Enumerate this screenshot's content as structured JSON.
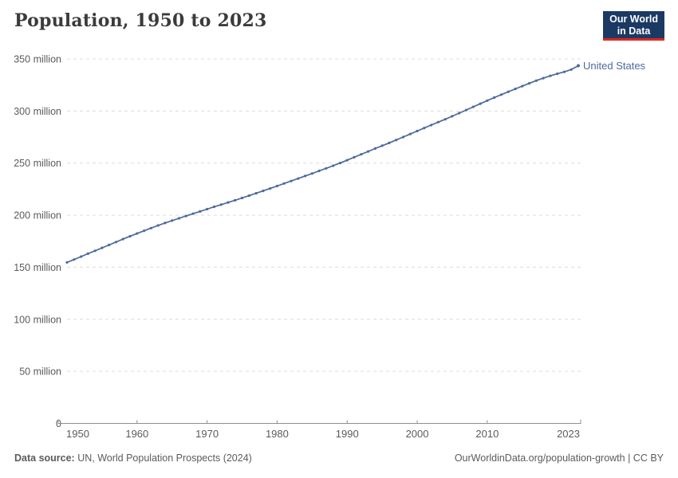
{
  "header": {
    "title": "Population, 1950 to 2023",
    "logo": {
      "line1": "Our World",
      "line2": "in Data",
      "bg_color": "#1a3a64",
      "accent_color": "#e02720",
      "text_color": "#ffffff"
    }
  },
  "chart_data": {
    "type": "line",
    "title": "Population, 1950 to 2023",
    "xlabel": "",
    "ylabel": "",
    "x_start": 1950,
    "x_end": 2023,
    "x_ticks": [
      1950,
      1960,
      1970,
      1980,
      1990,
      2000,
      2010,
      2023
    ],
    "y_ticks": [
      0,
      50,
      100,
      150,
      200,
      250,
      300,
      350
    ],
    "y_unit": "million",
    "ylim": [
      0,
      350
    ],
    "grid": "horizontal-dashed",
    "legend_position": "end-of-line-label",
    "series": [
      {
        "name": "United States",
        "color": "#4c6a9c",
        "values": [
          154.6,
          157.4,
          160.2,
          163.0,
          165.8,
          168.6,
          171.4,
          174.2,
          177.0,
          179.7,
          182.4,
          185.0,
          187.6,
          190.1,
          192.5,
          194.8,
          197.0,
          199.2,
          201.4,
          203.6,
          205.8,
          208.0,
          210.1,
          212.2,
          214.3,
          216.5,
          218.7,
          221.0,
          223.3,
          225.6,
          228.0,
          230.4,
          232.8,
          235.2,
          237.6,
          240.0,
          242.5,
          245.0,
          247.5,
          250.1,
          252.8,
          255.6,
          258.4,
          261.2,
          264.0,
          266.7,
          269.4,
          272.2,
          275.0,
          277.9,
          280.8,
          283.7,
          286.5,
          289.3,
          292.1,
          295.0,
          298.0,
          301.0,
          304.0,
          307.0,
          310.0,
          312.9,
          315.7,
          318.5,
          321.2,
          323.9,
          326.6,
          329.2,
          331.6,
          333.8,
          335.8,
          337.6,
          339.8,
          343.5
        ]
      }
    ]
  },
  "footer": {
    "source_label": "Data source:",
    "source_text": " UN, World Population Prospects (2024)",
    "credit": "OurWorldinData.org/population-growth | CC BY"
  }
}
